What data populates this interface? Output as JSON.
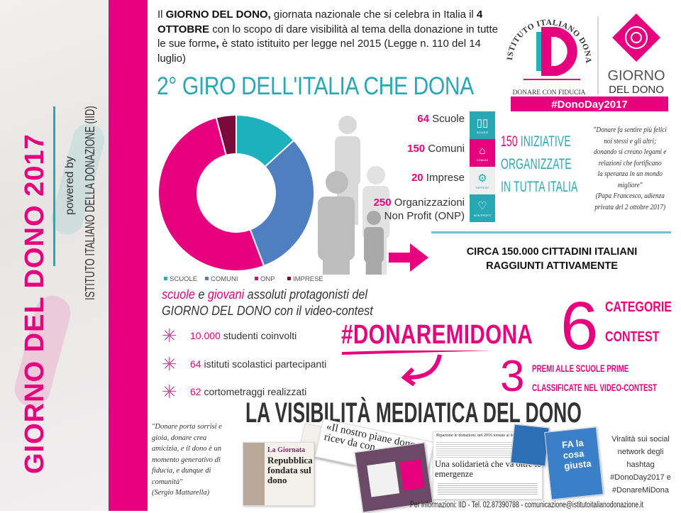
{
  "sidebar": {
    "title": "GIORNO DEL DONO 2017",
    "powered_by": "powered by",
    "org": "ISTITUTO ITALIANO DELLA DONAZIONE (IID)"
  },
  "intro": {
    "p1": "Il ",
    "b1": "GIORNO DEL DONO,",
    "p2": " giornata nazionale che si celebra in Italia il ",
    "b2": "4 OTTOBRE",
    "p3": " con lo scopo di dare visibilità al tema della donazione in tutte le sue forme",
    "b3": ",",
    "p4": " è stato istituito per legge nel 2015 (Legge n. 110 del 14 luglio)"
  },
  "logo": {
    "arc_text": "ISTITUTO ITALIANO DONAZIONE",
    "mark": "ID",
    "tagline": "DONARE CON FIDUCIA",
    "giorno1": "GIORNO",
    "giorno2": "DEL DONO",
    "hashtag": "#DonoDay2017"
  },
  "giro_title": "2° GIRO DELL'ITALIA CHE DONA",
  "chart_data": {
    "type": "pie",
    "donut": true,
    "categories": [
      "SCUOLE",
      "COMUNI",
      "ONP",
      "IMPRESE"
    ],
    "values": [
      64,
      150,
      250,
      20
    ],
    "colors": [
      "#1fb0bd",
      "#4f7fc0",
      "#e6007e",
      "#7a0a3c"
    ],
    "legend_placement": "bottom"
  },
  "stats": [
    {
      "num": "64",
      "label": " Scuole",
      "icon": "book-icon",
      "icon_label": "SCUOLE",
      "color": "#2aa7b5"
    },
    {
      "num": "150",
      "label": " Comuni",
      "icon": "town-hall-icon",
      "icon_label": "COMUNI",
      "color": "#e6007e"
    },
    {
      "num": "20",
      "label": " Imprese",
      "icon": "gears-icon",
      "icon_label": "IMPRESE",
      "color": "#eeeeee"
    },
    {
      "num": "250",
      "label": " Organizzazioni",
      "label2": "Non Profit (ONP)",
      "icon": "heart-icon",
      "icon_label": "NON PROFIT",
      "color": "#2aa7b5"
    }
  ],
  "iniziative": {
    "num": "150",
    "l1": " INIZIATIVE",
    "l2": "ORGANIZZATE",
    "l3": "IN TUTTA ITALIA"
  },
  "quote_papa": {
    "lines": [
      "\"Donare fa sentire più felici",
      "noi stessi e gli altri;",
      "donando si creano legami e",
      "relazioni che fortificano",
      "la speranza in un mondo",
      "migliore\"",
      "(Papa Francesco, udienza",
      "privata del 2 ottobre 2017)"
    ]
  },
  "circa": {
    "l1": "CIRCA 150.000 CITTADINI ITALIANI",
    "l2": "RAGGIUNTI ATTIVAMENTE"
  },
  "contest_intro": {
    "w1": "scuole",
    "w2": " e ",
    "w3": "giovani",
    "w4": " assoluti protagonisti del",
    "l2": "GIORNO DEL DONO con il video-contest"
  },
  "contest_items": [
    {
      "num": "10.000",
      "text": " studenti coinvolti"
    },
    {
      "num": "64",
      "text": " istituti scolastici partecipanti"
    },
    {
      "num": "62",
      "text": " cortometraggi realizzati"
    }
  ],
  "hashtag": "#DONAREMIDONA",
  "categorie": {
    "num": "6",
    "l1": "CATEGORIE",
    "l2": "CONTEST"
  },
  "premi": {
    "num": "3",
    "l1": "PREMI ALLE SCUOLE PRIME",
    "l2": "CLASSIFICATE NEL VIDEO-CONTEST"
  },
  "media_title": "LA VISIBILITÀ MEDIATICA DEL DONO",
  "quote_mattarella": {
    "lines": [
      "\"Donare porta sorrisi e",
      "gioia, donare crea",
      "amicizia, e il dono è un",
      "momento generativo di",
      "fiducia, e dunque di",
      "comunità\"",
      "(Sergio Mattarella)"
    ]
  },
  "clips": {
    "c1_head": "La Giornata",
    "c1_title": "Repubblica fondata sul dono",
    "c2_title": "«Il nostro piane dono ricev da con",
    "c3_head": "Ripartono le donazioni: nel 2016 tornate ai livelli pre-crisi",
    "c4_title": "Una solidarietà che va oltre le emergenze",
    "c5_title": "FA la cosa giusta"
  },
  "viral": {
    "lines": [
      "Viralità sui social",
      "network degli",
      "hashtag",
      "#DonoDay2017 e",
      "#DonareMiDona"
    ]
  },
  "footer": "Per informazioni: IID - Tel. 02.87390788 - comunicazione@istitutoitalianodonazione.it"
}
